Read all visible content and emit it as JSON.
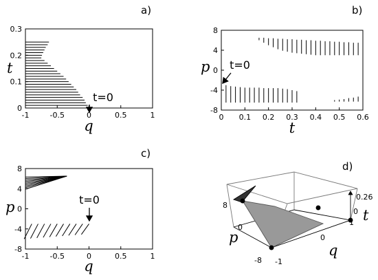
{
  "chart_data": [
    {
      "type": "hlines",
      "panel_label": "a)",
      "x_label": "q",
      "y_label": "t",
      "annotation": "t=0",
      "y": [
        0.25,
        0.24,
        0.23,
        0.22,
        0.21,
        0.2,
        0.19,
        0.18,
        0.17,
        0.16,
        0.15,
        0.14,
        0.13,
        0.12,
        0.11,
        0.1,
        0.09,
        0.08,
        0.07,
        0.06,
        0.05,
        0.04,
        0.03,
        0.02,
        0.01
      ],
      "x_end": [
        -0.63,
        -0.65,
        -0.68,
        -0.7,
        -0.72,
        -0.74,
        -0.75,
        -0.7,
        -0.65,
        -0.6,
        -0.55,
        -0.5,
        -0.45,
        -0.4,
        -0.36,
        -0.32,
        -0.28,
        -0.24,
        -0.2,
        -0.17,
        -0.14,
        -0.1,
        -0.07,
        -0.05,
        -0.02
      ],
      "xlim": [
        -1,
        1
      ],
      "ylim": [
        0,
        0.3
      ],
      "xticks": [
        -1,
        -0.5,
        0,
        0.5,
        1
      ],
      "yticks": [
        0,
        0.1,
        0.2,
        0.3
      ]
    },
    {
      "type": "vlines",
      "panel_label": "b)",
      "x_label": "t",
      "y_label": "p",
      "annotation": "t=0",
      "regions": [
        {
          "x": [
            0,
            0.02,
            0.04,
            0.06,
            0.08,
            0.1,
            0.12,
            0.14,
            0.16,
            0.18,
            0.2,
            0.22,
            0.24,
            0.26,
            0.28,
            0.3,
            0.32
          ],
          "low": [
            -6.5,
            -6.5,
            -6.5,
            -6.5,
            -6.5,
            -6.5,
            -6.5,
            -6.5,
            -6.5,
            -6.5,
            -6.5,
            -6.5,
            -6.5,
            -6.5,
            -6.5,
            -6.5,
            -6.5
          ],
          "high": [
            -3,
            -3,
            -3.2,
            -3.3,
            -3.4,
            -3.5,
            -3.5,
            -3.5,
            -3.5,
            -3.6,
            -3.6,
            -3.6,
            -3.6,
            -3.7,
            -3.8,
            -4,
            -4.2
          ]
        },
        {
          "x": [
            0.16,
            0.18,
            0.2,
            0.22,
            0.24,
            0.26,
            0.28,
            0.3,
            0.32,
            0.34,
            0.36,
            0.38,
            0.4,
            0.42,
            0.44,
            0.46,
            0.48,
            0.5,
            0.52,
            0.54,
            0.56,
            0.58,
            0.6
          ],
          "low": [
            6,
            5.5,
            5,
            4.6,
            4.2,
            3.9,
            3.7,
            3.5,
            3.4,
            3.3,
            3.2,
            3.1,
            3,
            3,
            3,
            3,
            3,
            3,
            3,
            3,
            3,
            3,
            3
          ],
          "high": [
            6.5,
            6.5,
            6.4,
            6.4,
            6.3,
            6.3,
            6.2,
            6.2,
            6.1,
            6.1,
            6,
            6,
            5.9,
            5.9,
            5.8,
            5.8,
            5.7,
            5.7,
            5.6,
            5.6,
            5.5,
            5.5,
            5.5
          ]
        },
        {
          "x": [
            0.48,
            0.5,
            0.52,
            0.54,
            0.56,
            0.58,
            0.6
          ],
          "low": [
            -6.3,
            -6.3,
            -6.3,
            -6.3,
            -6.3,
            -6.3,
            -6.3
          ],
          "high": [
            -6,
            -5.9,
            -5.8,
            -5.6,
            -5.5,
            -5.3,
            -5.2
          ]
        }
      ],
      "xlim": [
        0,
        0.6
      ],
      "ylim": [
        -8,
        8
      ],
      "xticks": [
        0,
        0.1,
        0.2,
        0.3,
        0.4,
        0.5,
        0.6
      ],
      "yticks": [
        -8,
        -4,
        0,
        4,
        8
      ]
    },
    {
      "type": "segments",
      "panel_label": "c)",
      "x_label": "q",
      "y_label": "p",
      "annotation": "t=0",
      "x1": [
        -1,
        -1,
        -1,
        -1,
        -1,
        -1,
        -1,
        -1,
        -1,
        -0.9,
        -0.8,
        -0.7,
        -0.6,
        -0.5,
        -0.4,
        -0.3,
        -0.2,
        -0.1,
        0
      ],
      "y1": [
        6.3,
        6,
        5.7,
        5.4,
        5.1,
        4.8,
        4.5,
        4.2,
        3.9,
        -3,
        -3,
        -3,
        -3,
        -3,
        -3,
        -3,
        -3,
        -3,
        -3
      ],
      "x2": [
        -0.35,
        -0.35,
        -0.35,
        -0.35,
        -0.35,
        -0.35,
        -0.35,
        -0.35,
        -0.35,
        -1.02,
        -0.92,
        -0.82,
        -0.72,
        -0.62,
        -0.52,
        -0.42,
        -0.32,
        -0.22,
        -0.12
      ],
      "y2": [
        6.5,
        6.5,
        6.5,
        6.5,
        6.5,
        6.5,
        6.5,
        6.5,
        6.5,
        -6,
        -5.9,
        -5.8,
        -5.7,
        -5.6,
        -5.5,
        -5.4,
        -5.3,
        -5.2,
        -5.1
      ],
      "xlim": [
        -1,
        1
      ],
      "ylim": [
        -8,
        8
      ],
      "xticks": [
        -1,
        -0.5,
        0,
        0.5,
        1
      ],
      "yticks": [
        -8,
        -4,
        0,
        4,
        8
      ]
    }
  ],
  "panel_d": {
    "label": "d)",
    "p_label": "p",
    "q_label": "q",
    "t_label": "t",
    "p_ticks": [
      "8",
      "0",
      "-8"
    ],
    "q_ticks": [
      "-1",
      "0",
      "1"
    ],
    "t_ticks": [
      "0",
      "0.26"
    ]
  }
}
